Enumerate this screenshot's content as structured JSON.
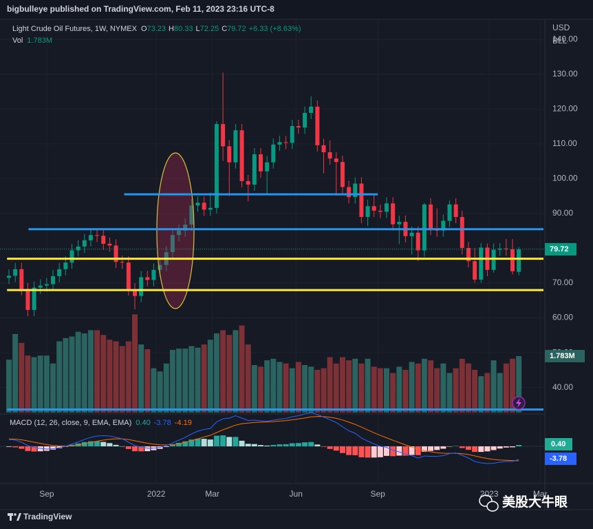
{
  "header": {
    "text": "bigbulleye published on TradingView.com, Feb 11, 2023 23:16 UTC-8"
  },
  "chart_data": {
    "type": "candlestick",
    "title": "Light Crude Oil Futures, 1W, NYMEX",
    "ohlc_prefixes": [
      "O",
      "H",
      "L",
      "C"
    ],
    "change": "+6.33 (+8.63%)",
    "currency": "USD",
    "unit": "BLL",
    "up_color": "#089981",
    "down_color": "#f23645",
    "open": [
      71.5,
      72.1,
      74.0,
      68.3,
      62.3,
      68.7,
      69.3,
      69.7,
      72.0,
      74.0,
      75.9,
      79.4,
      80.5,
      82.3,
      83.8,
      83.6,
      81.3,
      80.8,
      76.1,
      75.9,
      68.2,
      66.3,
      71.7,
      70.9,
      73.8,
      75.2,
      78.9,
      83.8,
      85.1,
      86.8,
      92.3,
      93.1,
      91.1,
      91.6,
      115.7,
      109.3,
      104.7,
      113.9,
      99.3,
      98.3,
      107.0,
      102.1,
      104.7,
      109.8,
      110.5,
      110.3,
      115.1,
      114.7,
      118.9,
      120.7,
      109.6,
      107.6,
      105.8,
      104.8,
      97.6,
      94.7,
      98.6,
      89.0,
      92.1,
      90.8,
      90.5,
      92.9,
      86.9,
      87.6,
      83.5,
      84.5,
      79.4,
      92.6,
      85.6,
      85.1,
      87.9,
      92.6,
      89.0,
      80.1,
      76.3,
      71.0,
      80.2,
      73.8,
      79.6,
      79.9,
      79.7,
      73.23
    ],
    "high": [
      73.9,
      75.8,
      75.8,
      70.1,
      70.5,
      71.1,
      71.5,
      73.8,
      75.8,
      77.7,
      81.2,
      82.3,
      84.1,
      85.6,
      85.6,
      85.4,
      83.1,
      82.6,
      77.9,
      77.7,
      70.0,
      73.5,
      73.5,
      75.6,
      77.0,
      80.7,
      85.6,
      86.9,
      88.6,
      94.1,
      94.9,
      94.9,
      96.0,
      116.5,
      130.5,
      111.1,
      115.7,
      115.7,
      101.1,
      108.8,
      108.8,
      106.5,
      111.6,
      112.3,
      112.3,
      116.9,
      116.9,
      120.7,
      123.7,
      122.5,
      111.4,
      111.0,
      107.6,
      106.6,
      99.4,
      100.4,
      100.4,
      93.9,
      95.7,
      92.6,
      94.7,
      94.7,
      89.4,
      89.4,
      86.3,
      86.3,
      93.0,
      94.4,
      91.5,
      89.7,
      93.7,
      94.4,
      90.8,
      81.9,
      80.1,
      81.5,
      81.4,
      81.4,
      81.5,
      82.7,
      82.7,
      80.33
    ],
    "low": [
      69.7,
      70.3,
      66.5,
      60.5,
      60.5,
      66.9,
      67.5,
      67.9,
      70.2,
      72.2,
      74.1,
      77.6,
      78.7,
      80.5,
      81.8,
      79.5,
      79.0,
      74.3,
      74.1,
      66.4,
      62.4,
      64.5,
      69.1,
      69.1,
      72.0,
      73.4,
      77.1,
      82.0,
      83.3,
      85.0,
      90.5,
      89.3,
      89.3,
      90.0,
      105.1,
      95.0,
      102.9,
      97.5,
      93.5,
      96.5,
      100.3,
      95.3,
      102.9,
      108.0,
      108.5,
      108.5,
      112.9,
      112.9,
      117.1,
      107.8,
      101.5,
      104.0,
      95.1,
      95.8,
      92.9,
      92.9,
      87.2,
      86.4,
      89.0,
      88.7,
      88.7,
      85.1,
      81.2,
      81.7,
      78.2,
      76.3,
      77.6,
      83.8,
      83.3,
      83.3,
      86.1,
      87.2,
      78.3,
      74.5,
      70.1,
      70.1,
      72.0,
      73.0,
      77.8,
      77.9,
      72.5,
      72.25
    ],
    "close": [
      72.1,
      74.0,
      68.3,
      62.3,
      68.7,
      69.3,
      69.7,
      72.0,
      74.0,
      75.9,
      79.4,
      80.5,
      82.3,
      83.8,
      83.6,
      81.3,
      80.8,
      76.1,
      75.9,
      68.2,
      66.3,
      71.7,
      70.9,
      73.8,
      75.2,
      78.9,
      83.8,
      85.1,
      86.8,
      92.3,
      93.1,
      91.1,
      91.6,
      115.7,
      109.3,
      104.7,
      113.9,
      99.3,
      98.3,
      107.0,
      102.1,
      104.7,
      109.8,
      110.5,
      110.3,
      115.1,
      114.7,
      118.9,
      120.7,
      109.6,
      107.6,
      105.8,
      104.8,
      97.6,
      94.7,
      98.6,
      89.0,
      92.1,
      90.8,
      90.5,
      92.9,
      86.9,
      87.6,
      83.5,
      84.5,
      79.4,
      92.6,
      85.6,
      85.1,
      87.9,
      92.6,
      89.0,
      80.1,
      76.3,
      71.0,
      80.2,
      73.8,
      79.6,
      79.9,
      79.7,
      73.4,
      79.72
    ],
    "ylim": [
      33,
      145
    ],
    "yticks": [
      {
        "value": 140,
        "label": "140.00"
      },
      {
        "value": 130,
        "label": "130.00"
      },
      {
        "value": 120,
        "label": "120.00"
      },
      {
        "value": 110,
        "label": "110.00"
      },
      {
        "value": 100,
        "label": "100.00"
      },
      {
        "value": 90,
        "label": "90.00"
      },
      {
        "value": 80,
        "label": "80.00"
      },
      {
        "value": 70,
        "label": "70.00"
      },
      {
        "value": 60,
        "label": "60.00"
      },
      {
        "value": 50,
        "label": "50.00"
      },
      {
        "value": 40,
        "label": "40.00"
      }
    ],
    "xticks": [
      {
        "value": 6.0,
        "label": "Sep"
      },
      {
        "value": 23.4,
        "label": "2022"
      },
      {
        "value": 32.3,
        "label": "Mar"
      },
      {
        "value": 45.6,
        "label": "Jun"
      },
      {
        "value": 58.6,
        "label": "Sep"
      },
      {
        "value": 76.3,
        "label": "2023"
      },
      {
        "value": 84.4,
        "label": "Mar"
      }
    ],
    "levels": [
      {
        "value": 95.5,
        "start": 18.3,
        "end": 58.6,
        "color": "#2196f3"
      },
      {
        "value": 85.5,
        "start": 3.1,
        "end": 85,
        "color": "#2196f3"
      },
      {
        "value": 77,
        "start": -0.3,
        "end": 85,
        "color": "#ffeb3b"
      },
      {
        "value": 68,
        "start": -0.3,
        "end": 85,
        "color": "#ffeb3b"
      },
      {
        "value": 33.7,
        "start": -0.3,
        "end": 85,
        "color": "#2196f3"
      }
    ],
    "volume": {
      "name": "Vol",
      "up_color": "#2a635f",
      "down_color": "#7c3136",
      "values": [
        1.67,
        2.48,
        2.2,
        1.8,
        1.75,
        1.8,
        1.8,
        1.55,
        2.25,
        2.35,
        2.4,
        2.55,
        2.5,
        2.6,
        2.6,
        2.45,
        2.3,
        2.25,
        2.1,
        2.25,
        3.1,
        2.15,
        2.0,
        1.4,
        1.3,
        1.55,
        1.98,
        2.02,
        2.02,
        2.1,
        2.05,
        2.15,
        2.3,
        2.5,
        2.6,
        2.45,
        2.6,
        2.75,
        2.15,
        1.5,
        1.45,
        1.65,
        1.7,
        1.6,
        1.55,
        1.4,
        1.6,
        1.5,
        1.45,
        1.35,
        1.4,
        1.75,
        1.55,
        1.75,
        1.65,
        1.7,
        1.55,
        1.7,
        1.45,
        1.4,
        1.4,
        1.25,
        1.45,
        1.35,
        1.6,
        1.55,
        1.7,
        1.65,
        1.4,
        1.55,
        1.25,
        1.4,
        1.7,
        1.55,
        1.35,
        1.15,
        1.25,
        1.65,
        1.25,
        1.55,
        1.7,
        1.783
      ],
      "last_label": "1.783M"
    },
    "macd": {
      "name": "MACD (12, 26, close, 9, EMA, EMA)",
      "macd_color": "#2962ff",
      "signal_color": "#ff6d00",
      "hist_colors": [
        "#26a69a",
        "#b2dfdb",
        "#ffcdd2",
        "#ff5252"
      ],
      "hist": [
        -0.16,
        -0.29,
        -0.71,
        -1.37,
        -1.5,
        -1.44,
        -1.31,
        -0.97,
        -0.54,
        -0.11,
        0.47,
        0.86,
        1.25,
        1.48,
        1.5,
        1.28,
        0.94,
        0.43,
        0.02,
        -0.78,
        -1.42,
        -1.46,
        -1.41,
        -1.13,
        -0.74,
        -0.19,
        0.49,
        1.03,
        1.46,
        1.97,
        2.22,
        2.18,
        1.98,
        3.1,
        3.2,
        2.72,
        2.74,
        1.63,
        0.74,
        0.67,
        0.38,
        0.22,
        0.42,
        0.58,
        0.62,
        0.9,
        0.96,
        1.17,
        1.26,
        0.53,
        -0.14,
        -0.75,
        -1.24,
        -1.95,
        -2.52,
        -2.58,
        -3.18,
        -3.26,
        -3.25,
        -3.16,
        -2.77,
        -2.86,
        -2.69,
        -2.71,
        -2.49,
        -2.55,
        -1.56,
        -1.33,
        -1.06,
        -0.69,
        -0.07,
        0.1,
        -0.48,
        -1.02,
        -1.62,
        -1.62,
        -1.46,
        -1.09,
        -0.63,
        -0.34,
        -0.27,
        0.4
      ],
      "hist_last_label": "0.40",
      "macd": [
        2.0,
        1.8,
        1.2,
        0.2,
        -0.3,
        -0.6,
        -0.8,
        -0.7,
        -0.4,
        0.0,
        0.7,
        1.3,
        2.0,
        2.6,
        3.0,
        3.1,
        3.0,
        2.6,
        2.2,
        1.2,
        0.2,
        -0.2,
        -0.5,
        -0.5,
        -0.3,
        0.2,
        1.0,
        1.8,
        2.6,
        3.6,
        4.4,
        4.9,
        5.2,
        7.1,
        8.0,
        8.2,
        8.9,
        8.2,
        7.5,
        7.6,
        7.4,
        7.3,
        7.6,
        7.9,
        8.1,
        8.6,
        8.9,
        9.4,
        9.8,
        9.2,
        8.5,
        7.7,
        6.9,
        5.7,
        4.5,
        3.8,
        2.4,
        1.5,
        0.7,
        0.0,
        -0.3,
        -1.1,
        -1.6,
        -2.3,
        -2.7,
        -3.4,
        -2.8,
        -2.9,
        -2.9,
        -2.7,
        -2.1,
        -1.9,
        -2.6,
        -3.4,
        -4.4,
        -4.8,
        -5.0,
        -4.9,
        -4.6,
        -4.4,
        -4.4,
        -3.78
      ],
      "signal": [
        2.16,
        2.09,
        1.91,
        1.57,
        1.2,
        0.84,
        0.51,
        0.27,
        0.14,
        0.11,
        0.23,
        0.44,
        0.75,
        1.12,
        1.5,
        1.82,
        2.06,
        2.17,
        2.18,
        1.98,
        1.62,
        1.26,
        0.91,
        0.63,
        0.44,
        0.39,
        0.51,
        0.77,
        1.14,
        1.63,
        2.18,
        2.72,
        3.22,
        4.0,
        4.8,
        5.48,
        6.16,
        6.57,
        6.76,
        6.93,
        7.02,
        7.08,
        7.18,
        7.32,
        7.48,
        7.7,
        7.94,
        8.23,
        8.54,
        8.67,
        8.64,
        8.45,
        8.14,
        7.65,
        7.02,
        6.38,
        5.58,
        4.76,
        3.95,
        3.16,
        2.47,
        1.76,
        1.09,
        0.41,
        -0.21,
        -0.85,
        -1.24,
        -1.57,
        -1.84,
        -2.01,
        -2.03,
        -2.0,
        -2.12,
        -2.38,
        -2.78,
        -3.18,
        -3.54,
        -3.81,
        -3.97,
        -4.06,
        -4.13,
        -4.19
      ]
    }
  },
  "footer": {
    "logo": "TradingView",
    "watermark": "美股大牛眼"
  }
}
